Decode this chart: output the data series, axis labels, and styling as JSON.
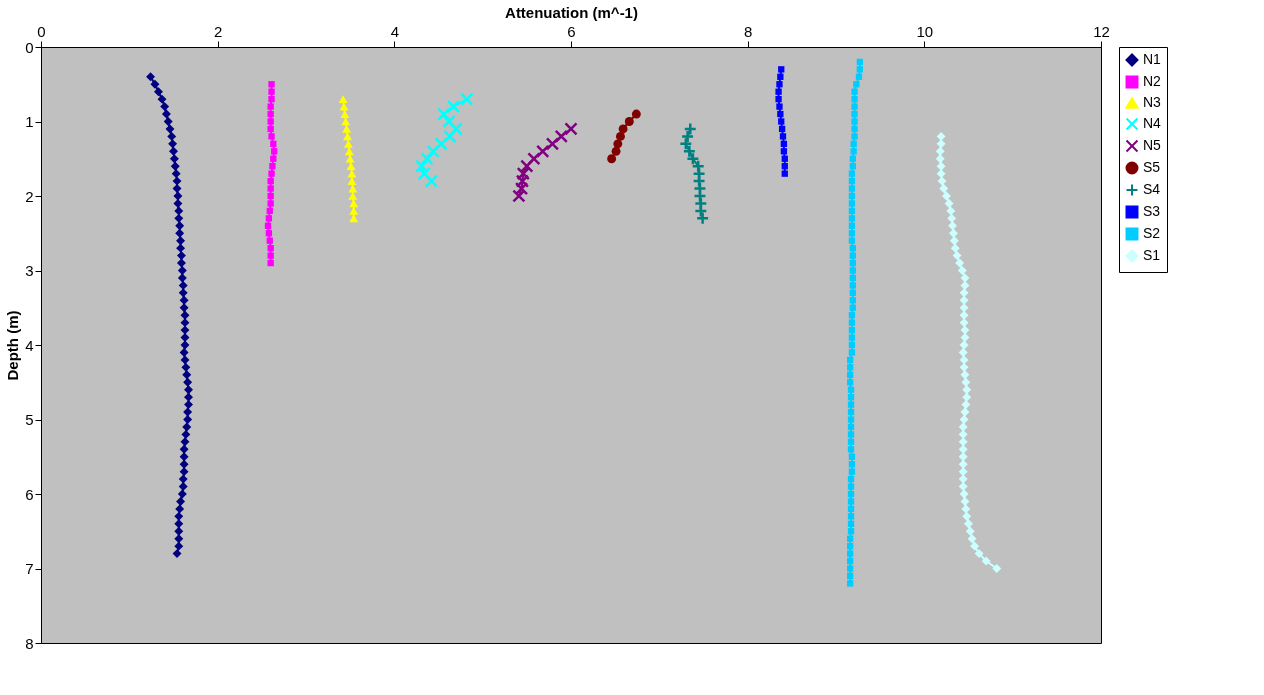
{
  "chart_data": {
    "type": "line",
    "xlabel": "Attenuation (m^-1)",
    "ylabel": "Depth (m)",
    "xlim": [
      0,
      12
    ],
    "xticks": [
      0,
      2,
      4,
      6,
      8,
      10,
      12
    ],
    "ylim": [
      8,
      0
    ],
    "yticks": [
      0,
      1,
      2,
      3,
      4,
      5,
      6,
      7,
      8
    ],
    "grid": false,
    "legend": "right",
    "line_style": "solid",
    "series": [
      {
        "name": "N1",
        "color": "#000080",
        "marker": "diamond",
        "x": [
          1.24,
          1.29,
          1.33,
          1.37,
          1.4,
          1.42,
          1.44,
          1.46,
          1.48,
          1.49,
          1.5,
          1.51,
          1.52,
          1.53,
          1.54,
          1.54,
          1.55,
          1.55,
          1.56,
          1.56,
          1.57,
          1.57,
          1.58,
          1.58,
          1.59,
          1.59,
          1.6,
          1.6,
          1.61,
          1.61,
          1.62,
          1.62,
          1.63,
          1.63,
          1.63,
          1.63,
          1.63,
          1.62,
          1.63,
          1.64,
          1.65,
          1.66,
          1.67,
          1.67,
          1.67,
          1.66,
          1.66,
          1.65,
          1.64,
          1.63,
          1.62,
          1.62,
          1.62,
          1.62,
          1.61,
          1.61,
          1.6,
          1.58,
          1.57,
          1.56,
          1.56,
          1.56,
          1.56,
          1.56,
          1.54
        ],
        "values": [
          0.4,
          0.5,
          0.6,
          0.7,
          0.8,
          0.9,
          1.0,
          1.1,
          1.2,
          1.3,
          1.4,
          1.5,
          1.6,
          1.7,
          1.8,
          1.9,
          2.0,
          2.1,
          2.2,
          2.3,
          2.4,
          2.5,
          2.6,
          2.7,
          2.8,
          2.9,
          3.0,
          3.1,
          3.2,
          3.3,
          3.4,
          3.5,
          3.6,
          3.7,
          3.8,
          3.9,
          4.0,
          4.1,
          4.2,
          4.3,
          4.4,
          4.5,
          4.6,
          4.7,
          4.8,
          4.9,
          5.0,
          5.1,
          5.2,
          5.3,
          5.4,
          5.5,
          5.6,
          5.7,
          5.8,
          5.9,
          6.0,
          6.1,
          6.2,
          6.3,
          6.4,
          6.5,
          6.6,
          6.7,
          6.8
        ]
      },
      {
        "name": "N2",
        "color": "#ff00ff",
        "marker": "square",
        "x": [
          2.61,
          2.61,
          2.61,
          2.6,
          2.6,
          2.6,
          2.6,
          2.61,
          2.63,
          2.64,
          2.63,
          2.62,
          2.61,
          2.6,
          2.6,
          2.6,
          2.6,
          2.59,
          2.58,
          2.57,
          2.58,
          2.59,
          2.6,
          2.6,
          2.6
        ],
        "values": [
          0.5,
          0.6,
          0.7,
          0.8,
          0.9,
          1.0,
          1.1,
          1.2,
          1.3,
          1.4,
          1.5,
          1.6,
          1.7,
          1.8,
          1.9,
          2.0,
          2.1,
          2.2,
          2.3,
          2.4,
          2.5,
          2.6,
          2.7,
          2.8,
          2.9
        ]
      },
      {
        "name": "N3",
        "color": "#ffff00",
        "marker": "triangle",
        "x": [
          3.42,
          3.43,
          3.44,
          3.45,
          3.46,
          3.47,
          3.48,
          3.49,
          3.5,
          3.51,
          3.52,
          3.52,
          3.53,
          3.53,
          3.54,
          3.54,
          3.54
        ],
        "values": [
          0.7,
          0.8,
          0.9,
          1.0,
          1.1,
          1.2,
          1.3,
          1.4,
          1.5,
          1.6,
          1.7,
          1.8,
          1.9,
          2.0,
          2.1,
          2.2,
          2.3
        ]
      },
      {
        "name": "N4",
        "color": "#00ffff",
        "marker": "cross",
        "x": [
          4.82,
          4.67,
          4.56,
          4.62,
          4.7,
          4.63,
          4.53,
          4.44,
          4.37,
          4.31,
          4.34,
          4.42
        ],
        "values": [
          0.7,
          0.8,
          0.9,
          1.0,
          1.1,
          1.2,
          1.3,
          1.4,
          1.5,
          1.6,
          1.7,
          1.8
        ]
      },
      {
        "name": "N5",
        "color": "#800080",
        "marker": "cross",
        "x": [
          6.0,
          5.89,
          5.79,
          5.68,
          5.58,
          5.5,
          5.46,
          5.45,
          5.44,
          5.41
        ],
        "values": [
          1.1,
          1.2,
          1.3,
          1.4,
          1.5,
          1.6,
          1.7,
          1.8,
          1.9,
          2.0
        ]
      },
      {
        "name": "S5",
        "color": "#800000",
        "marker": "circle",
        "x": [
          6.74,
          6.66,
          6.59,
          6.56,
          6.53,
          6.51,
          6.46
        ],
        "values": [
          0.9,
          1.0,
          1.1,
          1.2,
          1.3,
          1.4,
          1.5
        ]
      },
      {
        "name": "S4",
        "color": "#008080",
        "marker": "plus",
        "x": [
          7.35,
          7.32,
          7.3,
          7.34,
          7.38,
          7.44,
          7.45,
          7.45,
          7.46,
          7.46,
          7.47,
          7.47,
          7.49
        ],
        "values": [
          1.1,
          1.2,
          1.3,
          1.4,
          1.5,
          1.6,
          1.7,
          1.8,
          1.9,
          2.0,
          2.1,
          2.2,
          2.3
        ]
      },
      {
        "name": "S3",
        "color": "#0000ff",
        "marker": "square",
        "x": [
          8.38,
          8.37,
          8.36,
          8.35,
          8.35,
          8.36,
          8.37,
          8.38,
          8.39,
          8.4,
          8.41,
          8.41,
          8.42,
          8.42,
          8.42
        ],
        "values": [
          0.3,
          0.4,
          0.5,
          0.6,
          0.7,
          0.8,
          0.9,
          1.0,
          1.1,
          1.2,
          1.3,
          1.4,
          1.5,
          1.6,
          1.7
        ]
      },
      {
        "name": "S2",
        "color": "#00ccff",
        "marker": "square",
        "x": [
          9.27,
          9.27,
          9.26,
          9.23,
          9.21,
          9.21,
          9.21,
          9.21,
          9.21,
          9.21,
          9.21,
          9.2,
          9.2,
          9.19,
          9.19,
          9.18,
          9.18,
          9.18,
          9.18,
          9.18,
          9.18,
          9.18,
          9.18,
          9.18,
          9.18,
          9.19,
          9.19,
          9.19,
          9.19,
          9.19,
          9.19,
          9.19,
          9.19,
          9.19,
          9.18,
          9.18,
          9.18,
          9.18,
          9.18,
          9.18,
          9.16,
          9.16,
          9.16,
          9.16,
          9.17,
          9.17,
          9.17,
          9.17,
          9.17,
          9.17,
          9.17,
          9.17,
          9.17,
          9.18,
          9.18,
          9.18,
          9.17,
          9.17,
          9.17,
          9.17,
          9.17,
          9.17,
          9.17,
          9.17,
          9.16,
          9.16,
          9.16,
          9.16,
          9.16,
          9.16,
          9.16
        ],
        "values": [
          0.2,
          0.3,
          0.4,
          0.5,
          0.6,
          0.7,
          0.8,
          0.9,
          1.0,
          1.1,
          1.2,
          1.3,
          1.4,
          1.5,
          1.6,
          1.7,
          1.8,
          1.9,
          2.0,
          2.1,
          2.2,
          2.3,
          2.4,
          2.5,
          2.6,
          2.7,
          2.8,
          2.9,
          3.0,
          3.1,
          3.2,
          3.3,
          3.4,
          3.5,
          3.6,
          3.7,
          3.8,
          3.9,
          4.0,
          4.1,
          4.2,
          4.3,
          4.4,
          4.5,
          4.6,
          4.7,
          4.8,
          4.9,
          5.0,
          5.1,
          5.2,
          5.3,
          5.4,
          5.5,
          5.6,
          5.7,
          5.8,
          5.9,
          6.0,
          6.1,
          6.2,
          6.3,
          6.4,
          6.5,
          6.6,
          6.7,
          6.8,
          6.9,
          7.0,
          7.1,
          7.2
        ]
      },
      {
        "name": "S1",
        "color": "#ccffff",
        "marker": "diamond",
        "x": [
          10.19,
          10.19,
          10.18,
          10.18,
          10.19,
          10.19,
          10.2,
          10.22,
          10.25,
          10.28,
          10.3,
          10.31,
          10.32,
          10.33,
          10.34,
          10.35,
          10.37,
          10.4,
          10.43,
          10.46,
          10.46,
          10.45,
          10.45,
          10.45,
          10.45,
          10.45,
          10.46,
          10.46,
          10.45,
          10.44,
          10.45,
          10.45,
          10.46,
          10.47,
          10.48,
          10.48,
          10.47,
          10.46,
          10.45,
          10.44,
          10.44,
          10.44,
          10.44,
          10.44,
          10.44,
          10.44,
          10.44,
          10.44,
          10.45,
          10.46,
          10.47,
          10.48,
          10.5,
          10.52,
          10.54,
          10.57,
          10.62,
          10.7,
          10.82
        ],
        "values": [
          1.2,
          1.3,
          1.4,
          1.5,
          1.6,
          1.7,
          1.8,
          1.9,
          2.0,
          2.1,
          2.2,
          2.3,
          2.4,
          2.5,
          2.6,
          2.7,
          2.8,
          2.9,
          3.0,
          3.1,
          3.2,
          3.3,
          3.4,
          3.5,
          3.6,
          3.7,
          3.8,
          3.9,
          4.0,
          4.1,
          4.2,
          4.3,
          4.4,
          4.5,
          4.6,
          4.7,
          4.8,
          4.9,
          5.0,
          5.1,
          5.2,
          5.3,
          5.4,
          5.5,
          5.6,
          5.7,
          5.8,
          5.9,
          6.0,
          6.1,
          6.2,
          6.3,
          6.4,
          6.5,
          6.6,
          6.7,
          6.8,
          6.9,
          7.0
        ]
      }
    ]
  }
}
